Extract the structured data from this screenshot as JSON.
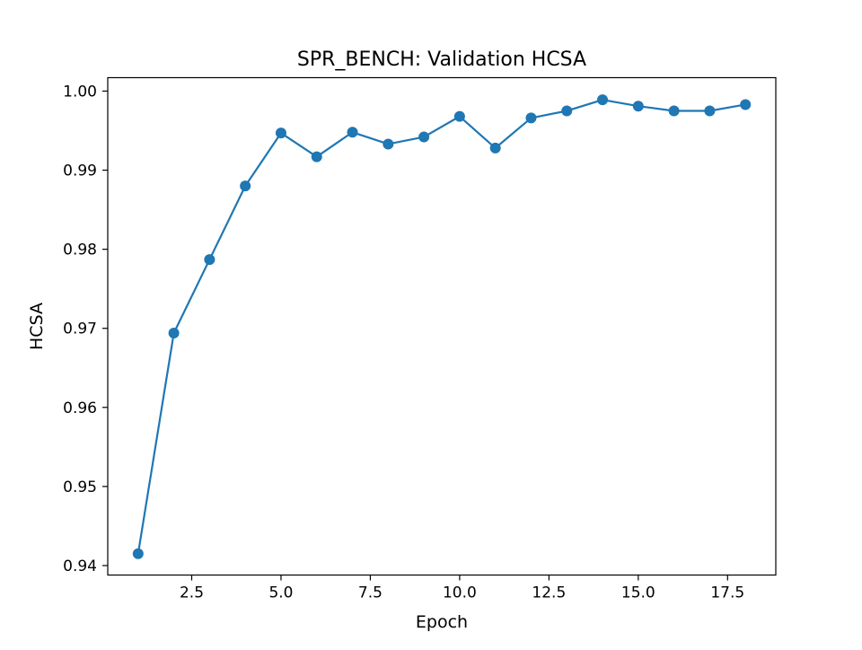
{
  "chart_data": {
    "type": "line",
    "title": "SPR_BENCH: Validation HCSA",
    "xlabel": "Epoch",
    "ylabel": "HCSA",
    "x": [
      1,
      2,
      3,
      4,
      5,
      6,
      7,
      8,
      9,
      10,
      11,
      12,
      13,
      14,
      15,
      16,
      17,
      18
    ],
    "series": [
      {
        "values": [
          0.9415,
          0.9694,
          0.9787,
          0.988,
          0.9947,
          0.9917,
          0.9948,
          0.9933,
          0.9942,
          0.9968,
          0.9928,
          0.9966,
          0.9975,
          0.9989,
          0.9981,
          0.9975,
          0.9975,
          0.9983
        ],
        "color": "#1f77b4"
      }
    ],
    "xlim": [
      0.15,
      18.85
    ],
    "ylim": [
      0.9388,
      1.0017
    ],
    "xticks": [
      2.5,
      5.0,
      7.5,
      10.0,
      12.5,
      15.0,
      17.5
    ],
    "xtick_labels": [
      "2.5",
      "5.0",
      "7.5",
      "10.0",
      "12.5",
      "15.0",
      "17.5"
    ],
    "yticks": [
      0.94,
      0.95,
      0.96,
      0.97,
      0.98,
      0.99,
      1.0
    ],
    "ytick_labels": [
      "0.94",
      "0.95",
      "0.96",
      "0.97",
      "0.98",
      "0.99",
      "1.00"
    ],
    "grid": false,
    "legend": false
  }
}
